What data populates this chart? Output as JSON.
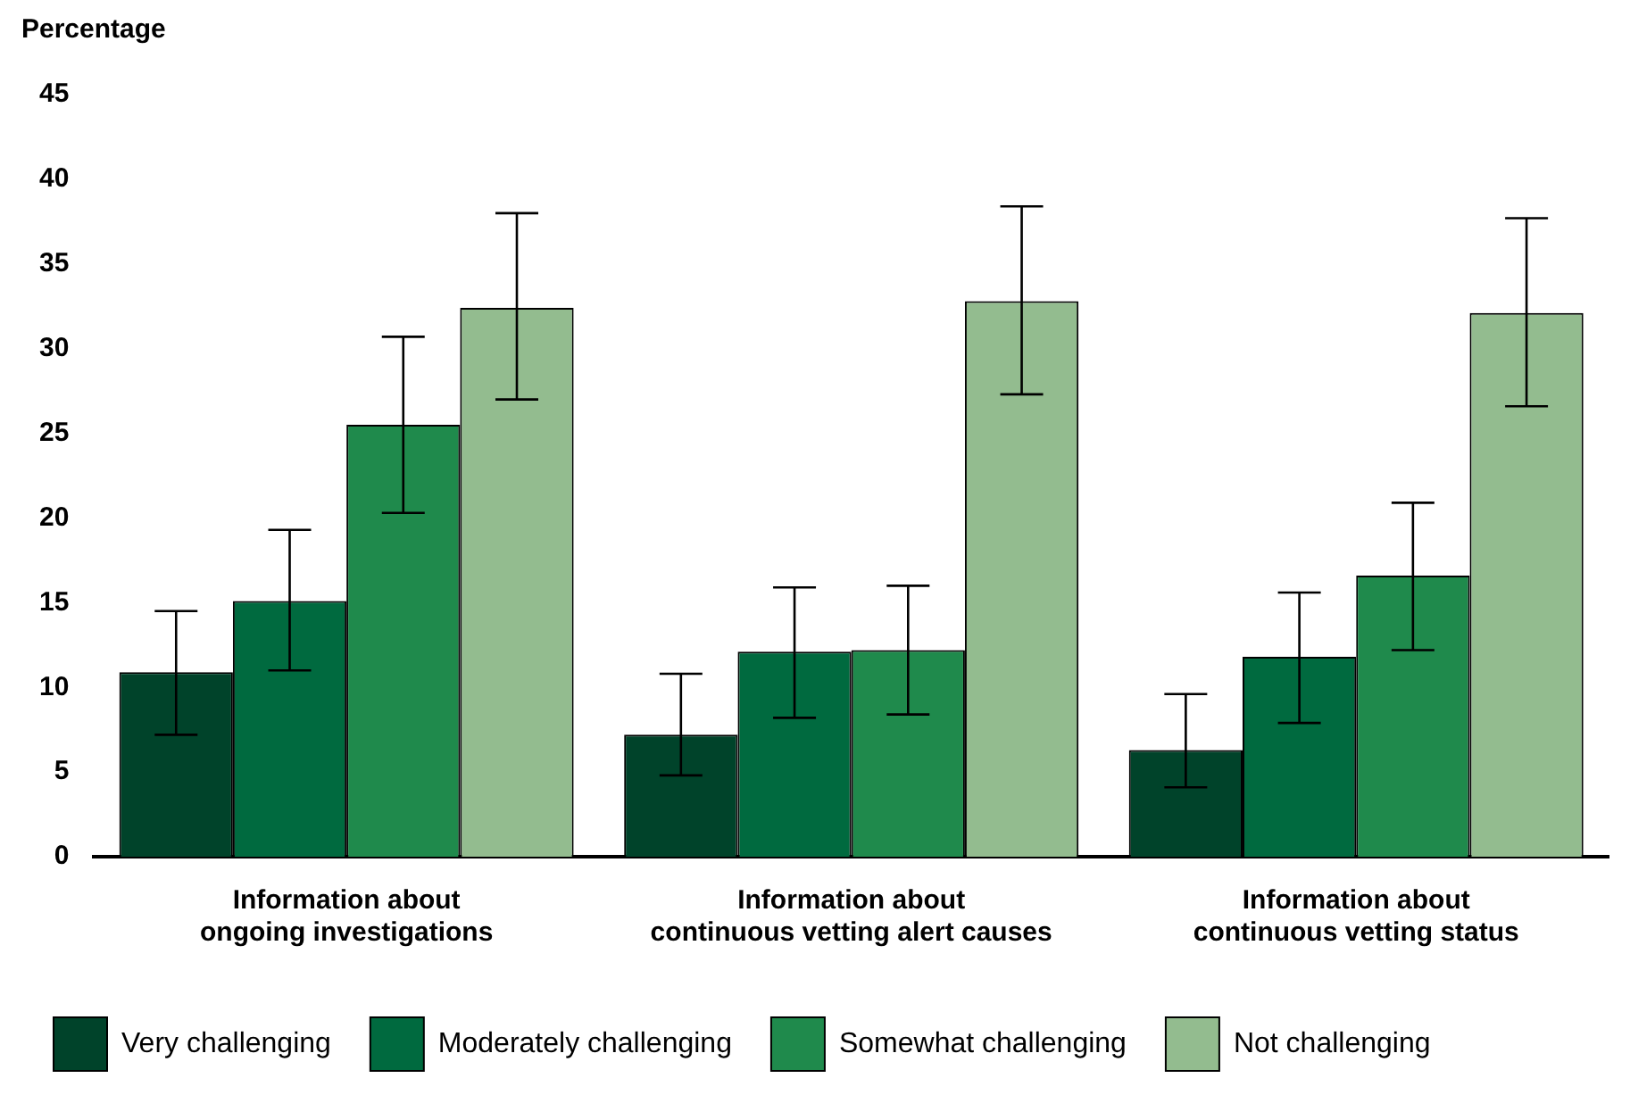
{
  "chart_data": {
    "type": "bar",
    "ylabel": "Percentage",
    "categories": [
      "Information about ongoing investigations",
      "Information about continuous vetting alert causes",
      "Information about continuous vetting status"
    ],
    "series": [
      {
        "name": "Very challenging",
        "color": "#00432a",
        "values": [
          10.9,
          7.2,
          6.3
        ],
        "errors": [
          [
            7.2,
            14.5
          ],
          [
            4.8,
            10.8
          ],
          [
            4.1,
            9.6
          ]
        ]
      },
      {
        "name": "Moderately challenging",
        "color": "#006a3f",
        "values": [
          15.1,
          12.1,
          11.8
        ],
        "errors": [
          [
            11.0,
            19.3
          ],
          [
            8.2,
            15.9
          ],
          [
            7.9,
            15.6
          ]
        ]
      },
      {
        "name": "Somewhat challenging",
        "color": "#1f8a4c",
        "values": [
          25.5,
          12.2,
          16.6
        ],
        "errors": [
          [
            20.3,
            30.7
          ],
          [
            8.4,
            16.0
          ],
          [
            12.2,
            20.9
          ]
        ]
      },
      {
        "name": "Not challenging",
        "color": "#93bc8f",
        "values": [
          32.4,
          32.8,
          32.1
        ],
        "errors": [
          [
            27.0,
            38.0
          ],
          [
            27.3,
            38.4
          ],
          [
            26.6,
            37.7
          ]
        ]
      }
    ],
    "ylim": [
      0,
      45
    ],
    "yticks": [
      0,
      5,
      10,
      15,
      20,
      25,
      30,
      35,
      40,
      45
    ],
    "grid": false,
    "legend": "bottom left"
  }
}
